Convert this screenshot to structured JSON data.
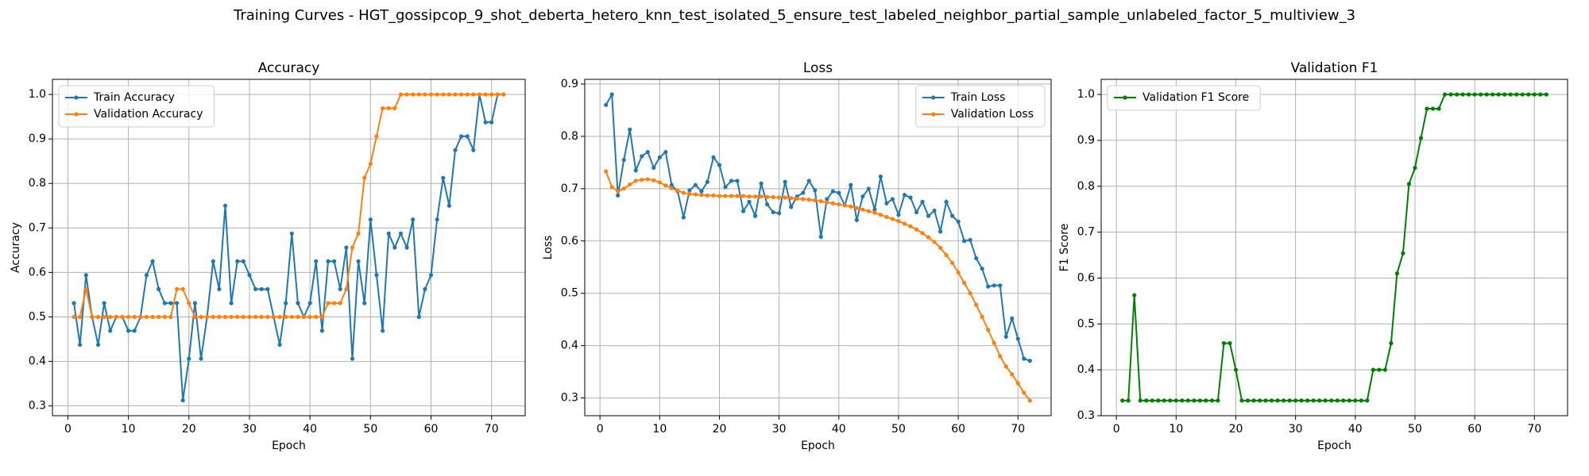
{
  "title": "Training Curves - HGT_gossipcop_9_shot_deberta_hetero_knn_test_isolated_5_ensure_test_labeled_neighbor_partial_sample_unlabeled_factor_5_multiview_3",
  "chart_data": [
    {
      "type": "line",
      "title": "Accuracy",
      "xlabel": "Epoch",
      "ylabel": "Accuracy",
      "legend": "upper left",
      "grid": true,
      "x": [
        1,
        2,
        3,
        4,
        5,
        6,
        7,
        8,
        9,
        10,
        11,
        12,
        13,
        14,
        15,
        16,
        17,
        18,
        19,
        20,
        21,
        22,
        23,
        24,
        25,
        26,
        27,
        28,
        29,
        30,
        31,
        32,
        33,
        34,
        35,
        36,
        37,
        38,
        39,
        40,
        41,
        42,
        43,
        44,
        45,
        46,
        47,
        48,
        49,
        50,
        51,
        52,
        53,
        54,
        55,
        56,
        57,
        58,
        59,
        60,
        61,
        62,
        63,
        64,
        65,
        66,
        67,
        68,
        69,
        70,
        71,
        72
      ],
      "xlim": [
        -2.55,
        75.55
      ],
      "xticks": [
        0,
        10,
        20,
        30,
        40,
        50,
        60,
        70
      ],
      "ylim": [
        0.278,
        1.034
      ],
      "yticks": [
        0.3,
        0.4,
        0.5,
        0.6,
        0.7,
        0.8,
        0.9,
        {
          "value": 1.0,
          "label": "1.0"
        }
      ],
      "series": [
        {
          "name": "Train Accuracy",
          "color": "#1f77b4",
          "values": [
            0.531,
            0.4375,
            0.594,
            0.5,
            0.4375,
            0.531,
            0.469,
            0.5,
            0.5,
            0.469,
            0.469,
            0.5,
            0.594,
            0.625,
            0.5625,
            0.531,
            0.531,
            0.531,
            0.3125,
            0.406,
            0.531,
            0.406,
            0.5,
            0.625,
            0.5625,
            0.75,
            0.531,
            0.625,
            0.625,
            0.594,
            0.5625,
            0.5625,
            0.5625,
            0.5,
            0.4375,
            0.531,
            0.6875,
            0.531,
            0.5,
            0.531,
            0.625,
            0.469,
            0.625,
            0.625,
            0.5625,
            0.656,
            0.406,
            0.625,
            0.531,
            0.719,
            0.594,
            0.469,
            0.6875,
            0.656,
            0.6875,
            0.656,
            0.719,
            0.5,
            0.5625,
            0.594,
            0.719,
            0.8125,
            0.75,
            0.875,
            0.906,
            0.906,
            0.875,
            1.0,
            0.9375,
            0.9375,
            1.0,
            1.0
          ]
        },
        {
          "name": "Validation Accuracy",
          "color": "#ff7f0e",
          "values": [
            0.5,
            0.5,
            0.5625,
            0.5,
            0.5,
            0.5,
            0.5,
            0.5,
            0.5,
            0.5,
            0.5,
            0.5,
            0.5,
            0.5,
            0.5,
            0.5,
            0.5,
            0.5625,
            0.5625,
            0.531,
            0.5,
            0.5,
            0.5,
            0.5,
            0.5,
            0.5,
            0.5,
            0.5,
            0.5,
            0.5,
            0.5,
            0.5,
            0.5,
            0.5,
            0.5,
            0.5,
            0.5,
            0.5,
            0.5,
            0.5,
            0.5,
            0.5,
            0.531,
            0.531,
            0.531,
            0.5625,
            0.656,
            0.6875,
            0.8125,
            0.844,
            0.906,
            0.969,
            0.969,
            0.969,
            1.0,
            1.0,
            1.0,
            1.0,
            1.0,
            1.0,
            1.0,
            1.0,
            1.0,
            1.0,
            1.0,
            1.0,
            1.0,
            1.0,
            1.0,
            1.0,
            1.0,
            1.0
          ]
        }
      ]
    },
    {
      "type": "line",
      "title": "Loss",
      "xlabel": "Epoch",
      "ylabel": "Loss",
      "legend": "upper right",
      "grid": true,
      "x": [
        1,
        2,
        3,
        4,
        5,
        6,
        7,
        8,
        9,
        10,
        11,
        12,
        13,
        14,
        15,
        16,
        17,
        18,
        19,
        20,
        21,
        22,
        23,
        24,
        25,
        26,
        27,
        28,
        29,
        30,
        31,
        32,
        33,
        34,
        35,
        36,
        37,
        38,
        39,
        40,
        41,
        42,
        43,
        44,
        45,
        46,
        47,
        48,
        49,
        50,
        51,
        52,
        53,
        54,
        55,
        56,
        57,
        58,
        59,
        60,
        61,
        62,
        63,
        64,
        65,
        66,
        67,
        68,
        69,
        70,
        71,
        72
      ],
      "xlim": [
        -2.55,
        75.55
      ],
      "xticks": [
        0,
        10,
        20,
        30,
        40,
        50,
        60,
        70
      ],
      "ylim": [
        0.266,
        0.909
      ],
      "yticks": [
        0.3,
        0.4,
        0.5,
        0.6,
        0.7,
        0.8,
        0.9
      ],
      "series": [
        {
          "name": "Train Loss",
          "color": "#1f77b4",
          "values": [
            0.86,
            0.88,
            0.687,
            0.755,
            0.813,
            0.735,
            0.762,
            0.77,
            0.74,
            0.76,
            0.77,
            0.707,
            0.695,
            0.645,
            0.697,
            0.707,
            0.695,
            0.713,
            0.76,
            0.745,
            0.703,
            0.715,
            0.715,
            0.657,
            0.675,
            0.648,
            0.71,
            0.67,
            0.655,
            0.653,
            0.713,
            0.665,
            0.685,
            0.692,
            0.715,
            0.697,
            0.608,
            0.68,
            0.695,
            0.692,
            0.668,
            0.707,
            0.64,
            0.685,
            0.7,
            0.66,
            0.723,
            0.672,
            0.68,
            0.65,
            0.688,
            0.683,
            0.655,
            0.675,
            0.648,
            0.658,
            0.618,
            0.675,
            0.648,
            0.637,
            0.6,
            0.602,
            0.567,
            0.547,
            0.513,
            0.515,
            0.515,
            0.417,
            0.452,
            0.413,
            0.375,
            0.371
          ]
        },
        {
          "name": "Validation Loss",
          "color": "#ff7f0e",
          "values": [
            0.733,
            0.703,
            0.695,
            0.7,
            0.708,
            0.715,
            0.717,
            0.718,
            0.716,
            0.712,
            0.706,
            0.701,
            0.696,
            0.692,
            0.69,
            0.689,
            0.688,
            0.687,
            0.687,
            0.686,
            0.686,
            0.686,
            0.686,
            0.686,
            0.685,
            0.685,
            0.685,
            0.684,
            0.684,
            0.683,
            0.683,
            0.682,
            0.681,
            0.68,
            0.679,
            0.678,
            0.676,
            0.674,
            0.672,
            0.67,
            0.668,
            0.666,
            0.663,
            0.66,
            0.657,
            0.654,
            0.65,
            0.646,
            0.642,
            0.638,
            0.633,
            0.628,
            0.622,
            0.615,
            0.607,
            0.598,
            0.587,
            0.573,
            0.558,
            0.54,
            0.52,
            0.5,
            0.478,
            0.455,
            0.43,
            0.405,
            0.38,
            0.36,
            0.345,
            0.328,
            0.31,
            0.295
          ]
        }
      ]
    },
    {
      "type": "line",
      "title": "Validation F1",
      "xlabel": "Epoch",
      "ylabel": "F1 Score",
      "legend": "upper left",
      "grid": true,
      "x": [
        1,
        2,
        3,
        4,
        5,
        6,
        7,
        8,
        9,
        10,
        11,
        12,
        13,
        14,
        15,
        16,
        17,
        18,
        19,
        20,
        21,
        22,
        23,
        24,
        25,
        26,
        27,
        28,
        29,
        30,
        31,
        32,
        33,
        34,
        35,
        36,
        37,
        38,
        39,
        40,
        41,
        42,
        43,
        44,
        45,
        46,
        47,
        48,
        49,
        50,
        51,
        52,
        53,
        54,
        55,
        56,
        57,
        58,
        59,
        60,
        61,
        62,
        63,
        64,
        65,
        66,
        67,
        68,
        69,
        70,
        71,
        72
      ],
      "xlim": [
        -2.55,
        75.55
      ],
      "xticks": [
        0,
        10,
        20,
        30,
        40,
        50,
        60,
        70
      ],
      "ylim": [
        0.3,
        1.033
      ],
      "yticks": [
        0.3,
        0.4,
        0.5,
        0.6,
        0.7,
        0.8,
        0.9,
        {
          "value": 1.0,
          "label": "1.0"
        }
      ],
      "series": [
        {
          "name": "Validation F1 Score",
          "color": "#008000",
          "values": [
            0.333,
            0.333,
            0.5625,
            0.333,
            0.333,
            0.333,
            0.333,
            0.333,
            0.333,
            0.333,
            0.333,
            0.333,
            0.333,
            0.333,
            0.333,
            0.333,
            0.333,
            0.458,
            0.458,
            0.4,
            0.333,
            0.333,
            0.333,
            0.333,
            0.333,
            0.333,
            0.333,
            0.333,
            0.333,
            0.333,
            0.333,
            0.333,
            0.333,
            0.333,
            0.333,
            0.333,
            0.333,
            0.333,
            0.333,
            0.333,
            0.333,
            0.333,
            0.4,
            0.4,
            0.4,
            0.458,
            0.61,
            0.654,
            0.805,
            0.84,
            0.905,
            0.969,
            0.969,
            0.969,
            1.0,
            1.0,
            1.0,
            1.0,
            1.0,
            1.0,
            1.0,
            1.0,
            1.0,
            1.0,
            1.0,
            1.0,
            1.0,
            1.0,
            1.0,
            1.0,
            1.0,
            1.0
          ]
        }
      ]
    }
  ]
}
